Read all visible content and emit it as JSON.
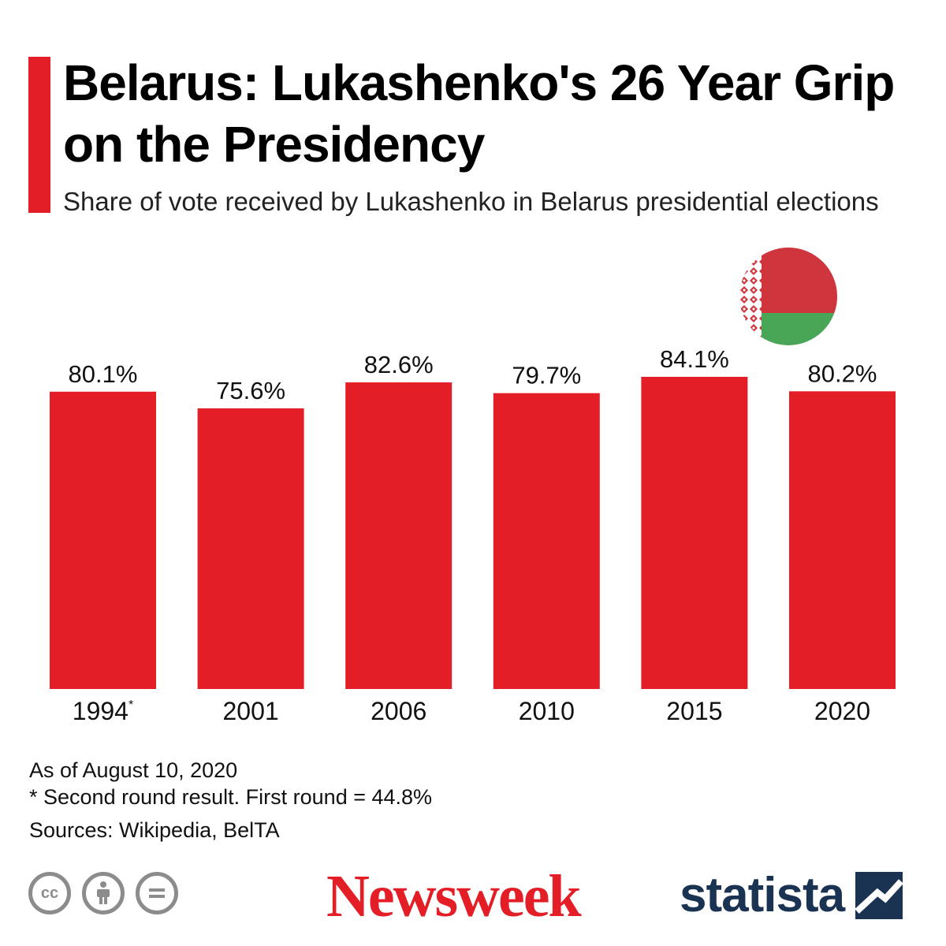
{
  "header": {
    "title": "Belarus: Lukashenko's 26 Year Grip on the Presidency",
    "subtitle": "Share of vote received by Lukashenko in Belarus presidential elections"
  },
  "chart_data": {
    "type": "bar",
    "categories": [
      "1994",
      "2001",
      "2006",
      "2010",
      "2015",
      "2020"
    ],
    "category_marks": [
      "*",
      "",
      "",
      "",
      "",
      ""
    ],
    "values": [
      80.1,
      75.6,
      82.6,
      79.7,
      84.1,
      80.2
    ],
    "value_labels": [
      "80.1%",
      "75.6%",
      "82.6%",
      "79.7%",
      "84.1%",
      "80.2%"
    ],
    "title": "",
    "xlabel": "",
    "ylabel": "",
    "ylim": [
      0,
      84.1
    ],
    "grid": false,
    "legend": "none",
    "bar_color": "#e41e26"
  },
  "flag": {
    "icon": "belarus-flag-icon",
    "colors": {
      "red": "#cf353c",
      "green": "#4aa657",
      "ornament": "#ffffff"
    }
  },
  "footnotes": {
    "as_of": "As of August 10, 2020",
    "note": "* Second round result. First round = 44.8%",
    "sources": "Sources: Wikipedia, BelTA"
  },
  "footer": {
    "license_icons": [
      "cc-icon",
      "attribution-icon",
      "no-derivatives-icon"
    ],
    "cc_text": "cc",
    "newsweek_logo": "Newsweek",
    "statista_logo": "statista",
    "newsweek_color": "#e41e26",
    "statista_color": "#1a3353"
  }
}
